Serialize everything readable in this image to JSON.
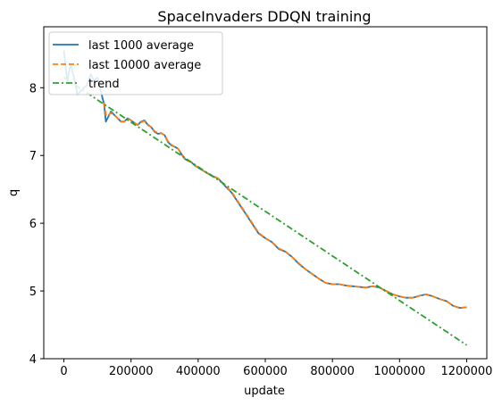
{
  "chart_data": {
    "type": "line",
    "title": "SpaceInvaders DDQN training",
    "xlabel": "update",
    "ylabel": "q",
    "xlim": [
      -60000,
      1260000
    ],
    "ylim": [
      4.0,
      8.9
    ],
    "xticks": [
      0,
      200000,
      400000,
      600000,
      800000,
      1000000,
      1200000
    ],
    "yticks": [
      4,
      5,
      6,
      7,
      8
    ],
    "legend_position": "upper-left",
    "series": [
      {
        "name": "last 1000 average",
        "style": "solid",
        "color": "#1f77b4",
        "x": [
          0,
          10000,
          20000,
          30000,
          40000,
          50000,
          60000,
          70000,
          80000,
          90000,
          100000,
          110000,
          120000,
          125000,
          130000,
          140000,
          150000,
          160000,
          170000,
          180000,
          190000,
          200000,
          210000,
          220000,
          230000,
          240000,
          250000,
          260000,
          270000,
          280000,
          290000,
          300000,
          310000,
          320000,
          330000,
          340000,
          350000,
          360000,
          370000,
          380000,
          390000,
          400000,
          420000,
          440000,
          460000,
          480000,
          500000,
          520000,
          540000,
          560000,
          580000,
          600000,
          620000,
          640000,
          660000,
          680000,
          700000,
          720000,
          740000,
          760000,
          780000,
          800000,
          820000,
          840000,
          860000,
          880000,
          900000,
          920000,
          940000,
          960000,
          980000,
          1000000,
          1020000,
          1040000,
          1060000,
          1080000,
          1100000,
          1120000,
          1140000,
          1160000,
          1180000,
          1200000
        ],
        "values": [
          8.55,
          8.1,
          8.35,
          8.15,
          7.9,
          7.95,
          8.0,
          8.05,
          8.2,
          8.1,
          8.15,
          7.95,
          7.75,
          7.5,
          7.55,
          7.65,
          7.6,
          7.55,
          7.5,
          7.5,
          7.55,
          7.52,
          7.48,
          7.45,
          7.5,
          7.52,
          7.45,
          7.42,
          7.35,
          7.32,
          7.33,
          7.3,
          7.2,
          7.15,
          7.13,
          7.1,
          7.02,
          6.95,
          6.92,
          6.9,
          6.85,
          6.82,
          6.76,
          6.7,
          6.66,
          6.55,
          6.45,
          6.3,
          6.15,
          6.0,
          5.85,
          5.78,
          5.72,
          5.62,
          5.58,
          5.5,
          5.4,
          5.32,
          5.25,
          5.18,
          5.12,
          5.1,
          5.1,
          5.08,
          5.07,
          5.06,
          5.05,
          5.07,
          5.05,
          5.0,
          4.95,
          4.92,
          4.9,
          4.9,
          4.93,
          4.95,
          4.92,
          4.88,
          4.85,
          4.78,
          4.75,
          4.76
        ]
      },
      {
        "name": "last 10000 average",
        "style": "dashed",
        "color": "#ff7f0e",
        "x": [
          120000,
          125000,
          130000,
          140000,
          150000,
          160000,
          170000,
          180000,
          190000,
          200000,
          210000,
          220000,
          230000,
          240000,
          250000,
          260000,
          270000,
          280000,
          290000,
          300000,
          310000,
          320000,
          330000,
          340000,
          350000,
          360000,
          370000,
          380000,
          390000,
          400000,
          420000,
          440000,
          460000,
          480000,
          500000,
          520000,
          540000,
          560000,
          580000,
          600000,
          620000,
          640000,
          660000,
          680000,
          700000,
          720000,
          740000,
          760000,
          780000,
          800000,
          820000,
          840000,
          860000,
          880000,
          900000,
          920000,
          940000,
          960000,
          980000,
          1000000,
          1020000,
          1040000,
          1060000,
          1080000,
          1100000,
          1120000,
          1140000,
          1160000,
          1180000,
          1200000
        ],
        "values": [
          7.78,
          7.6,
          7.58,
          7.63,
          7.6,
          7.55,
          7.5,
          7.5,
          7.54,
          7.52,
          7.48,
          7.45,
          7.49,
          7.51,
          7.46,
          7.42,
          7.36,
          7.33,
          7.33,
          7.3,
          7.21,
          7.16,
          7.13,
          7.1,
          7.03,
          6.96,
          6.92,
          6.9,
          6.86,
          6.82,
          6.76,
          6.71,
          6.66,
          6.56,
          6.46,
          6.31,
          6.16,
          6.01,
          5.86,
          5.78,
          5.72,
          5.63,
          5.58,
          5.5,
          5.41,
          5.32,
          5.25,
          5.18,
          5.12,
          5.1,
          5.1,
          5.08,
          5.07,
          5.06,
          5.05,
          5.07,
          5.05,
          5.0,
          4.95,
          4.92,
          4.9,
          4.9,
          4.93,
          4.95,
          4.92,
          4.88,
          4.85,
          4.78,
          4.75,
          4.76
        ]
      },
      {
        "name": "trend",
        "style": "dashdot",
        "color": "#2ca02c",
        "x": [
          0,
          1200000
        ],
        "values": [
          8.15,
          4.2
        ]
      }
    ]
  }
}
